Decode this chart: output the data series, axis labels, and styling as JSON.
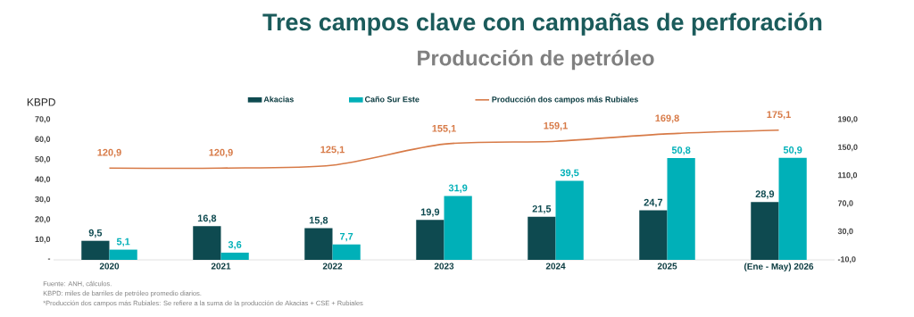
{
  "chart_data": {
    "type": "bar",
    "title": "Tres campos clave con campañas de perforación",
    "subtitle": "Producción de petróleo",
    "ylabel": "KBPD",
    "categories": [
      "2020",
      "2021",
      "2022",
      "2023",
      "2024",
      "2025",
      "(Ene - May) 2026"
    ],
    "series": [
      {
        "name": "Akacias",
        "color": "#0e4a50",
        "values": [
          9.5,
          16.8,
          15.8,
          19.9,
          21.5,
          24.7,
          28.9
        ],
        "value_labels": [
          "9,5",
          "16,8",
          "15,8",
          "19,9",
          "21,5",
          "24,7",
          "28,9"
        ]
      },
      {
        "name": "Caño Sur Este",
        "color": "#00b0b8",
        "values": [
          5.1,
          3.6,
          7.7,
          31.9,
          39.5,
          50.8,
          50.9
        ],
        "value_labels": [
          "5,1",
          "3,6",
          "7,7",
          "31,9",
          "39,5",
          "50,8",
          "50,9"
        ]
      },
      {
        "name": "Producción dos campos más Rubiales",
        "type": "line",
        "axis": "y2",
        "color": "#d77a47",
        "values": [
          120.9,
          120.9,
          125.1,
          155.1,
          159.1,
          169.8,
          175.1
        ],
        "value_labels": [
          "120,9",
          "120,9",
          "125,1",
          "155,1",
          "159,1",
          "169,8",
          "175,1"
        ]
      }
    ],
    "ylim": [
      0,
      70
    ],
    "yticks": [
      {
        "value": 0,
        "label": "-"
      },
      {
        "value": 10,
        "label": "10,0"
      },
      {
        "value": 20,
        "label": "20,0"
      },
      {
        "value": 30,
        "label": "30,0"
      },
      {
        "value": 40,
        "label": "40,0"
      },
      {
        "value": 50,
        "label": "50,0"
      },
      {
        "value": 60,
        "label": "60,0"
      },
      {
        "value": 70,
        "label": "70,0"
      }
    ],
    "y2lim": [
      -10,
      190
    ],
    "y2ticks": [
      {
        "value": -10,
        "label": "-10,0"
      },
      {
        "value": 30,
        "label": "30,0"
      },
      {
        "value": 70,
        "label": "70,0"
      },
      {
        "value": 110,
        "label": "110,0"
      },
      {
        "value": 150,
        "label": "150,0"
      },
      {
        "value": 190,
        "label": "190,0"
      }
    ],
    "legend": "top",
    "annotations": [
      "Fuente: ANH, cálculos.",
      "KBPD: miles de barriles de petróleo promedio diarios.",
      "*Producción dos campos más Rubiales: Se refiere a la suma de la producción de Akacias + CSE + Rubiales"
    ]
  }
}
